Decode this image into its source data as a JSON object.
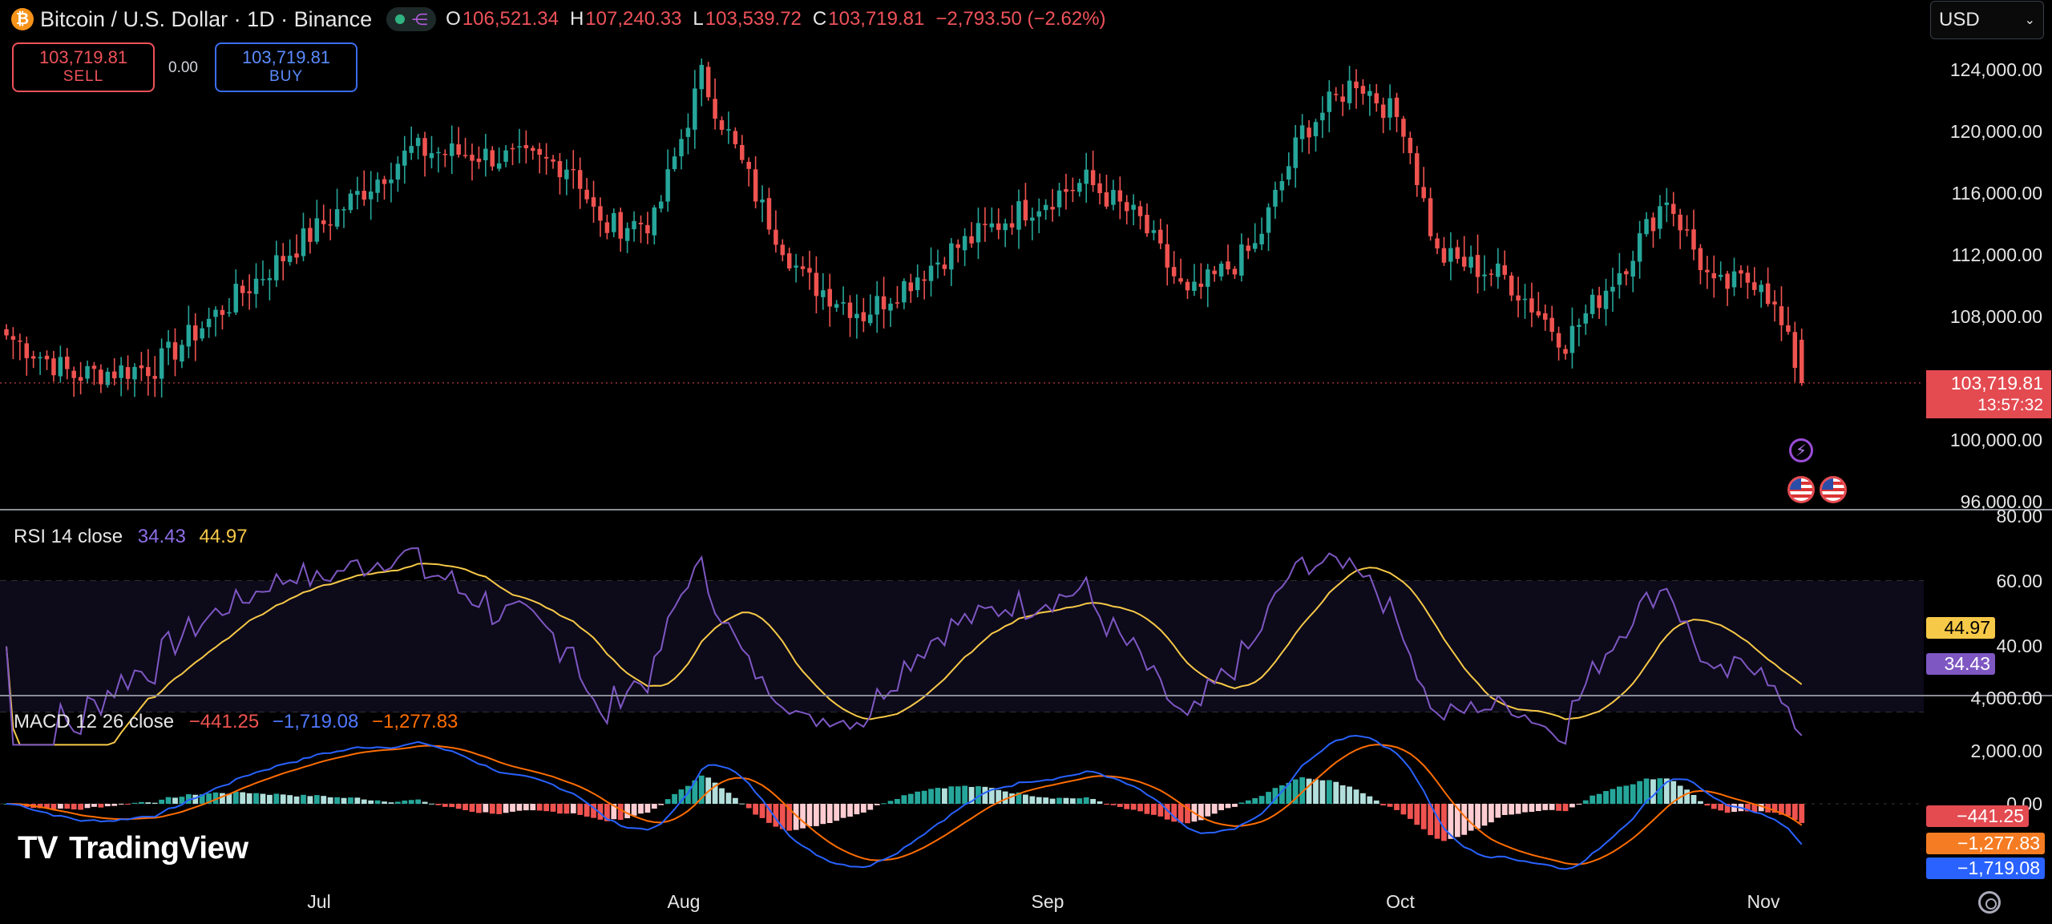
{
  "header": {
    "symbol_icon": "bitcoin-icon",
    "title": "Bitcoin / U.S. Dollar · 1D · Binance",
    "ohlc": [
      {
        "k": "O",
        "v": "106,521.34"
      },
      {
        "k": "H",
        "v": "107,240.33"
      },
      {
        "k": "L",
        "v": "103,539.72"
      },
      {
        "k": "C",
        "v": "103,719.81"
      }
    ],
    "change": "−2,793.50 (−2.62%)"
  },
  "trade": {
    "sell_price": "103,719.81",
    "sell_label": "SELL",
    "spread": "0.00",
    "buy_price": "103,719.81",
    "buy_label": "BUY"
  },
  "currency": {
    "value": "USD",
    "icon": "chevron-down-icon"
  },
  "price_axis": [
    "124,000.00",
    "120,000.00",
    "116,000.00",
    "112,000.00",
    "108,000.00",
    "100,000.00",
    "96,000.00"
  ],
  "last_price": {
    "value": "103,719.81",
    "countdown": "13:57:32"
  },
  "rsi": {
    "title": "RSI 14 close",
    "value": "34.43",
    "ma": "44.97",
    "axis": [
      "80.00",
      "60.00",
      "40.00"
    ]
  },
  "macd": {
    "title": "MACD 12 26 close",
    "hist": "−441.25",
    "macd": "−1,719.08",
    "signal": "−1,277.83",
    "axis": [
      "4,000.00",
      "2,000.00",
      "0.00"
    ]
  },
  "time_axis": [
    "Jul",
    "Aug",
    "Sep",
    "Oct",
    "Nov"
  ],
  "brand": "TradingView",
  "colors": {
    "up": "#26a69a",
    "down": "#ef5350",
    "rsi": "#7e57c2",
    "rsi_ma": "#f7c948",
    "macd": "#2962ff",
    "signal": "#ff6d00"
  },
  "chart_data": {
    "type": "candlestick",
    "x_labels": [
      "Jul",
      "Aug",
      "Sep",
      "Oct",
      "Nov"
    ],
    "ylim": [
      96000,
      124000
    ],
    "anchors_close": [
      [
        0,
        106800
      ],
      [
        10,
        104200
      ],
      [
        22,
        104800
      ],
      [
        40,
        111500
      ],
      [
        60,
        118800
      ],
      [
        70,
        118500
      ],
      [
        84,
        117800
      ],
      [
        88,
        113800
      ],
      [
        96,
        114200
      ],
      [
        103,
        123600
      ],
      [
        112,
        115000
      ],
      [
        118,
        110500
      ],
      [
        127,
        108200
      ],
      [
        140,
        112300
      ],
      [
        150,
        114800
      ],
      [
        160,
        116800
      ],
      [
        168,
        114200
      ],
      [
        175,
        109200
      ],
      [
        185,
        112500
      ],
      [
        192,
        120000
      ],
      [
        200,
        123400
      ],
      [
        207,
        120500
      ],
      [
        212,
        112000
      ],
      [
        222,
        110600
      ],
      [
        231,
        106400
      ],
      [
        240,
        111600
      ],
      [
        246,
        115800
      ],
      [
        253,
        109800
      ],
      [
        260,
        110600
      ],
      [
        266,
        104000
      ]
    ],
    "last": {
      "open": 106521.34,
      "high": 107240.33,
      "low": 103539.72,
      "close": 103719.81
    },
    "rsi_range": [
      20,
      80
    ],
    "macd_range": [
      -2500,
      4000
    ]
  }
}
